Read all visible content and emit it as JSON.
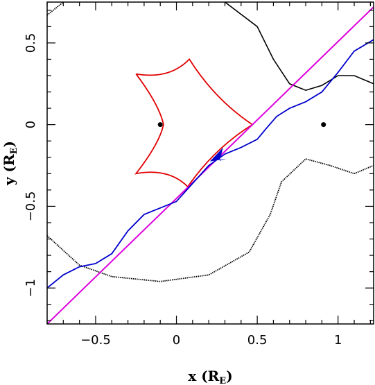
{
  "chart_data": {
    "type": "line",
    "xlabel": "x",
    "xunit": "R",
    "xunit_sub": "E",
    "ylabel": "y",
    "yunit": "R",
    "yunit_sub": "E",
    "xlim": [
      -0.8,
      1.22
    ],
    "ylim": [
      -1.22,
      0.75
    ],
    "xticks": [
      -0.5,
      0,
      0.5,
      1
    ],
    "xtick_labels": [
      "−0.5",
      "0",
      "0.5",
      "1"
    ],
    "yticks": [
      -1,
      -0.5,
      0,
      0.5
    ],
    "ytick_labels": [
      "−1",
      "−0.5",
      "0",
      "0.5"
    ],
    "grid": false,
    "colors": {
      "caustic": "#e00000",
      "critical_curve": "#000000",
      "source_trajectory": "#dd00dd",
      "image_track": "#0000cc",
      "lens": "#000000"
    },
    "lens_positions": [
      {
        "x": -0.1,
        "y": 0.0
      },
      {
        "x": 0.91,
        "y": 0.0
      }
    ],
    "source_trajectory": {
      "points": [
        {
          "x": -0.8,
          "y": -1.22
        },
        {
          "x": 1.22,
          "y": 0.72
        }
      ]
    },
    "caustic": {
      "cusps": [
        {
          "x": -0.25,
          "y": 0.31
        },
        {
          "x": 0.08,
          "y": 0.4
        },
        {
          "x": 0.47,
          "y": 0.0
        },
        {
          "x": 0.07,
          "y": -0.38
        },
        {
          "x": -0.25,
          "y": -0.3
        },
        {
          "x": -0.08,
          "y": 0.0
        }
      ]
    },
    "critical_curve": {
      "outer_arc": [
        {
          "x": -0.8,
          "y": -0.68
        },
        {
          "x": -0.6,
          "y": -0.86
        },
        {
          "x": -0.4,
          "y": -0.93
        },
        {
          "x": -0.1,
          "y": -0.96
        },
        {
          "x": 0.2,
          "y": -0.92
        },
        {
          "x": 0.45,
          "y": -0.78
        },
        {
          "x": 0.58,
          "y": -0.55
        },
        {
          "x": 0.65,
          "y": -0.35
        },
        {
          "x": 0.8,
          "y": -0.21
        },
        {
          "x": 0.95,
          "y": -0.25
        },
        {
          "x": 1.1,
          "y": -0.3
        },
        {
          "x": 1.22,
          "y": -0.25
        }
      ],
      "upper_arc": [
        {
          "x": -0.8,
          "y": 0.67
        },
        {
          "x": -0.7,
          "y": 0.75
        }
      ],
      "upper_right": [
        {
          "x": 0.3,
          "y": 0.75
        },
        {
          "x": 0.5,
          "y": 0.6
        },
        {
          "x": 0.6,
          "y": 0.4
        },
        {
          "x": 0.7,
          "y": 0.25
        },
        {
          "x": 0.8,
          "y": 0.21
        },
        {
          "x": 0.9,
          "y": 0.24
        },
        {
          "x": 1.0,
          "y": 0.3
        },
        {
          "x": 1.1,
          "y": 0.3
        },
        {
          "x": 1.22,
          "y": 0.25
        }
      ]
    },
    "image_track": [
      {
        "x": -0.8,
        "y": -1.0
      },
      {
        "x": -0.7,
        "y": -0.92
      },
      {
        "x": -0.6,
        "y": -0.87
      },
      {
        "x": -0.5,
        "y": -0.85
      },
      {
        "x": -0.4,
        "y": -0.79
      },
      {
        "x": -0.3,
        "y": -0.65
      },
      {
        "x": -0.2,
        "y": -0.55
      },
      {
        "x": -0.1,
        "y": -0.51
      },
      {
        "x": 0.0,
        "y": -0.47
      },
      {
        "x": 0.1,
        "y": -0.36
      },
      {
        "x": 0.2,
        "y": -0.25
      },
      {
        "x": 0.3,
        "y": -0.18
      },
      {
        "x": 0.4,
        "y": -0.14
      },
      {
        "x": 0.5,
        "y": -0.09
      },
      {
        "x": 0.55,
        "y": -0.03
      },
      {
        "x": 0.62,
        "y": 0.05
      },
      {
        "x": 0.7,
        "y": 0.1
      },
      {
        "x": 0.8,
        "y": 0.14
      },
      {
        "x": 0.9,
        "y": 0.2
      },
      {
        "x": 1.0,
        "y": 0.32
      },
      {
        "x": 1.1,
        "y": 0.45
      },
      {
        "x": 1.22,
        "y": 0.52
      }
    ],
    "arrow": {
      "x": 0.25,
      "y": -0.2,
      "direction": "down-left"
    }
  }
}
